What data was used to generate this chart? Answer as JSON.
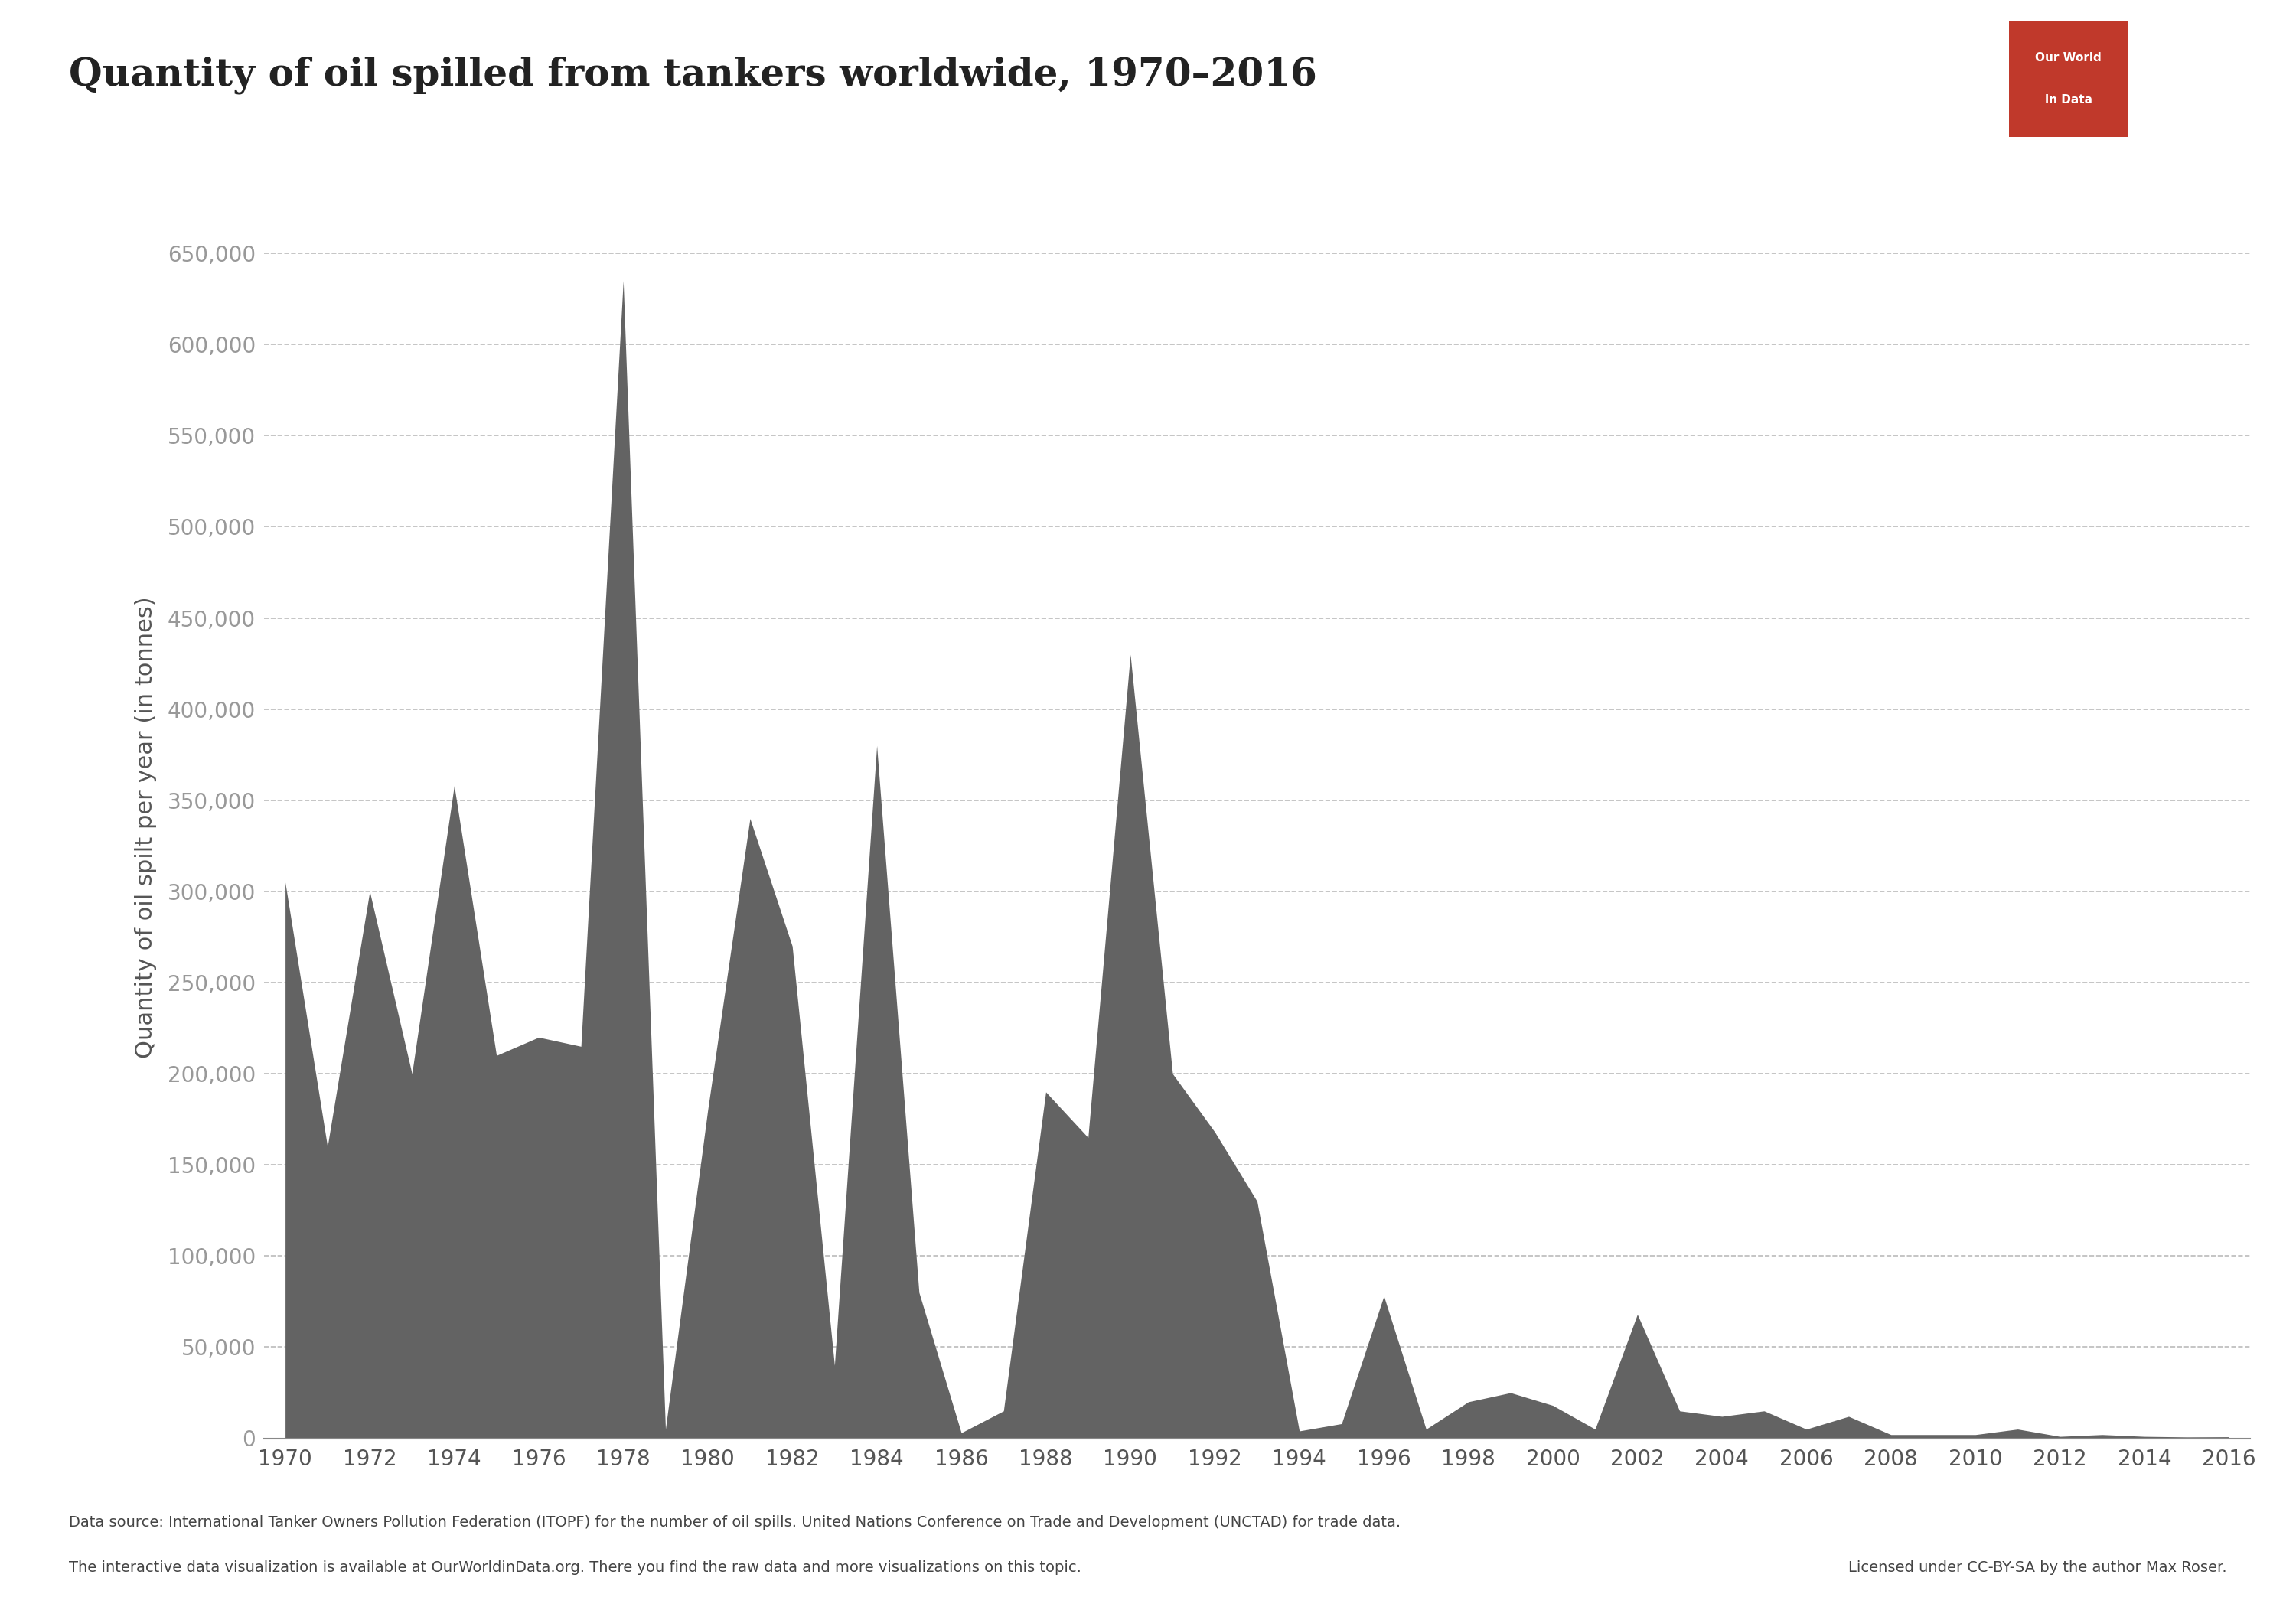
{
  "title": "Quantity of oil spilled from tankers worldwide, 1970–2016",
  "ylabel": "Quantity of oil spilt per year (in tonnes)",
  "fill_color": "#636363",
  "background_color": "#ffffff",
  "grid_color": "#bbbbbb",
  "years": [
    1970,
    1971,
    1972,
    1973,
    1974,
    1975,
    1976,
    1977,
    1978,
    1979,
    1980,
    1981,
    1982,
    1983,
    1984,
    1985,
    1986,
    1987,
    1988,
    1989,
    1990,
    1991,
    1992,
    1993,
    1994,
    1995,
    1996,
    1997,
    1998,
    1999,
    2000,
    2001,
    2002,
    2003,
    2004,
    2005,
    2006,
    2007,
    2008,
    2009,
    2010,
    2011,
    2012,
    2013,
    2014,
    2015,
    2016
  ],
  "values": [
    305000,
    160000,
    300000,
    200000,
    358000,
    210000,
    220000,
    215000,
    635000,
    5000,
    180000,
    340000,
    270000,
    40000,
    380000,
    80000,
    3000,
    15000,
    190000,
    165000,
    430000,
    200000,
    168000,
    130000,
    4000,
    8000,
    78000,
    5000,
    20000,
    25000,
    18000,
    5000,
    68000,
    15000,
    12000,
    15000,
    5000,
    12000,
    2000,
    2000,
    2000,
    5000,
    1000,
    2000,
    1000,
    700,
    800
  ],
  "yticks": [
    0,
    50000,
    100000,
    150000,
    200000,
    250000,
    300000,
    350000,
    400000,
    450000,
    500000,
    550000,
    600000,
    650000
  ],
  "ylim": [
    0,
    670000
  ],
  "xlim": [
    1969.5,
    2016.5
  ],
  "title_fontsize": 36,
  "ylabel_fontsize": 22,
  "tick_fontsize": 20,
  "logo_red": "#c0392b",
  "logo_dark": "#2c3e50",
  "footer_left1": "Data source: International Tanker Owners Pollution Federation (ITOPF) for the number of oil spills. United Nations Conference on Trade and Development (UNCTAD) for trade data.",
  "footer_left2": "The interactive data visualization is available at OurWorldinData.org. There you find the raw data and more visualizations on this topic.",
  "footer_right": "Licensed under CC-BY-SA by the author Max Roser.",
  "footer_link_color": "#3498db",
  "axis_color": "#888888",
  "tick_color": "#555555",
  "ytick_label_color": "#999999",
  "title_color": "#222222"
}
